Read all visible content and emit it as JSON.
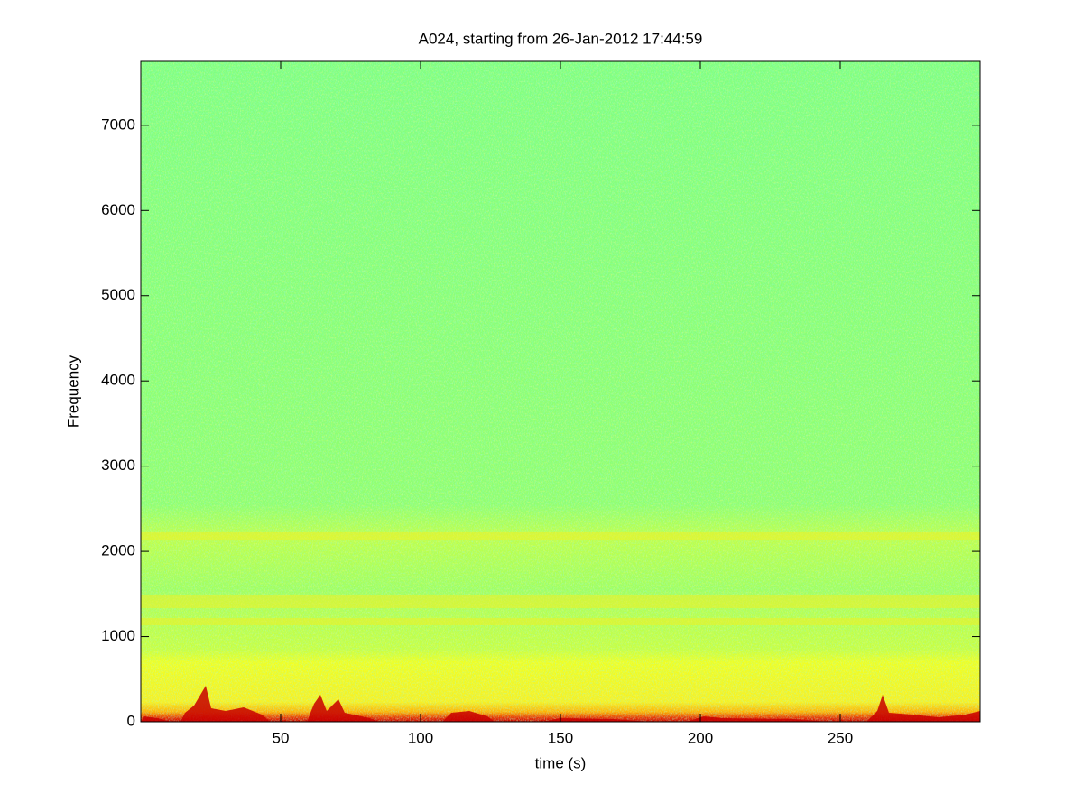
{
  "chart_data": {
    "type": "spectrogram",
    "title": "A024, starting from 26-Jan-2012 17:44:59",
    "x_label": "time (s)",
    "y_label": "Frequency",
    "xlim": [
      0,
      300
    ],
    "xticks": [
      50,
      100,
      150,
      200,
      250
    ],
    "ylim": [
      0,
      7750
    ],
    "yticks": [
      0,
      1000,
      2000,
      3000,
      4000,
      5000,
      6000,
      7000
    ],
    "colormap": "jet"
  }
}
